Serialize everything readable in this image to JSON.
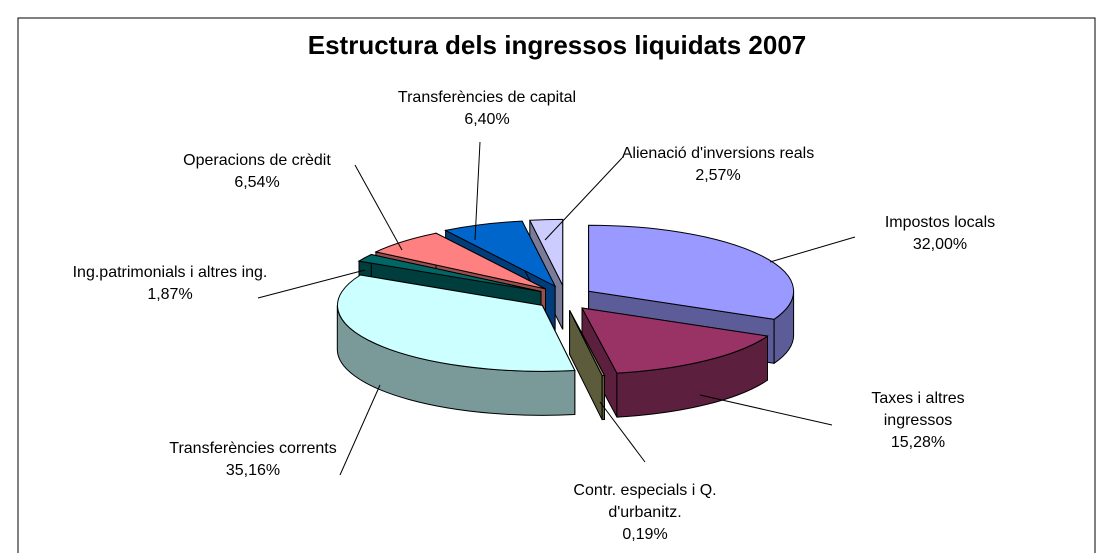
{
  "chart_data": {
    "type": "pie",
    "title": "Estructura dels ingressos liquidats 2007",
    "categories": [
      "Impostos locals",
      "Taxes i altres ingressos",
      "Contr. especials i Q. d'urbanitz.",
      "Transferències corrents",
      "Ing.patrimonials i altres ing.",
      "Operacions de crèdit",
      "Transferències de capital",
      "Alienació d'inversions reals"
    ],
    "values": [
      32.0,
      15.28,
      0.19,
      35.16,
      1.87,
      6.54,
      6.4,
      2.57
    ],
    "value_labels": [
      "32,00%",
      "15,28%",
      "0,19%",
      "35,16%",
      "1,87%",
      "6,54%",
      "6,40%",
      "2,57%"
    ],
    "colors": [
      "#9999ff",
      "#993366",
      "#999966",
      "#ccffff",
      "#006666",
      "#ff8080",
      "#0066cc",
      "#ccccff"
    ]
  }
}
